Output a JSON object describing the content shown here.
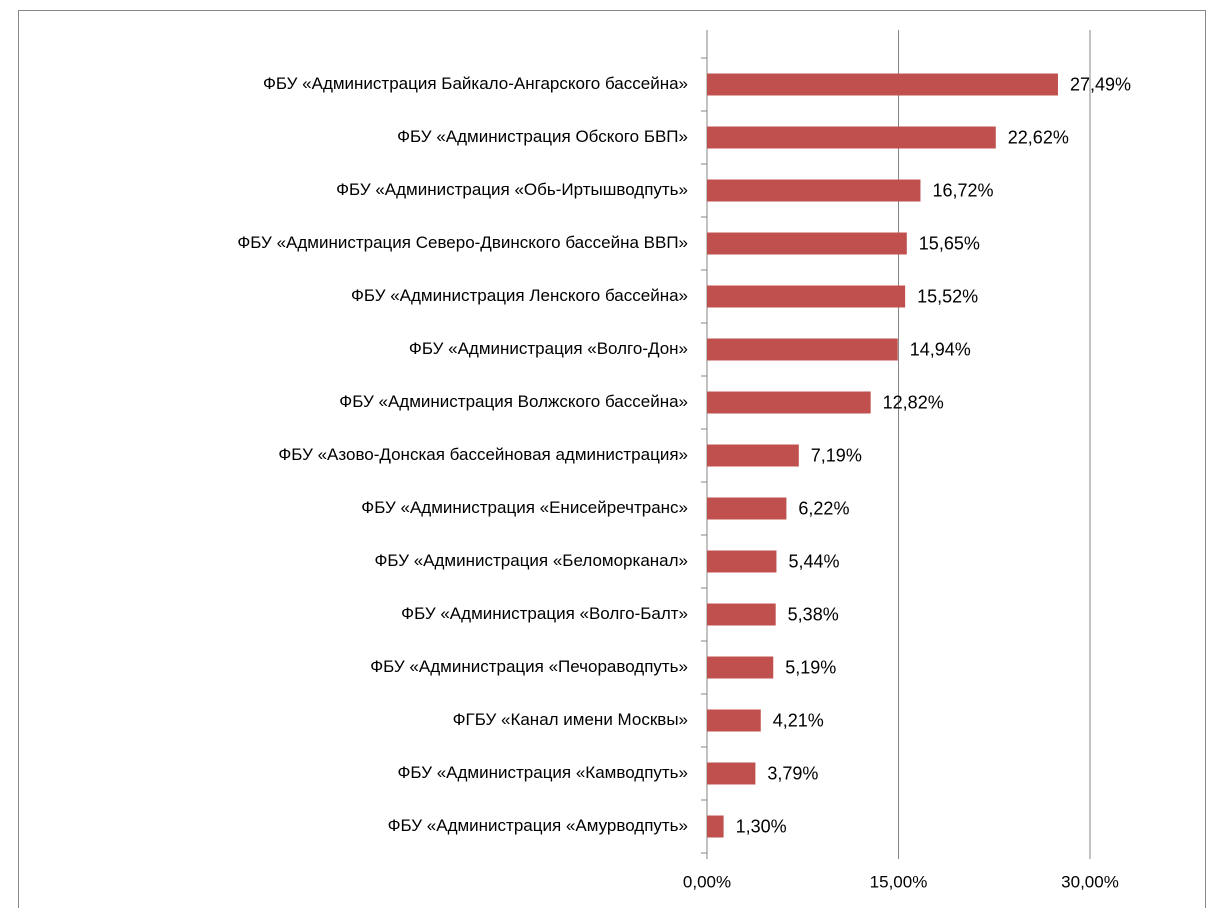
{
  "chart_data": {
    "type": "hbar",
    "categories": [
      "ФБУ «Администрация Байкало-Ангарского бассейна»",
      "ФБУ «Администрация Обского БВП»",
      "ФБУ «Администрация «Обь-Иртышводпуть»",
      "ФБУ «Администрация Северо-Двинского бассейна ВВП»",
      "ФБУ «Администрация Ленского бассейна»",
      "ФБУ «Администрация «Волго-Дон»",
      "ФБУ «Администрация Волжского бассейна»",
      "ФБУ «Азово-Донская бассейновая администрация»",
      "ФБУ «Администрация «Енисейречтранс»",
      "ФБУ «Администрация «Беломорканал»",
      "ФБУ «Администрация «Волго-Балт»",
      "ФБУ «Администрация «Печораводпуть»",
      "ФГБУ «Канал имени Москвы»",
      "ФБУ «Администрация «Камводпуть»",
      "ФБУ «Администрация «Амурводпуть»"
    ],
    "values": [
      27.49,
      22.62,
      16.72,
      15.65,
      15.52,
      14.94,
      12.82,
      7.19,
      6.22,
      5.44,
      5.38,
      5.19,
      4.21,
      3.79,
      1.3
    ],
    "value_labels": [
      "27,49%",
      "22,62%",
      "16,72%",
      "15,65%",
      "15,52%",
      "14,94%",
      "12,82%",
      "7,19%",
      "6,22%",
      "5,44%",
      "5,38%",
      "5,19%",
      "4,21%",
      "3,79%",
      "1,30%"
    ],
    "color": "#c0504d",
    "xlim": [
      0,
      30
    ],
    "xticks": [
      {
        "value": 0,
        "label": "0,00%"
      },
      {
        "value": 15,
        "label": "15,00%"
      },
      {
        "value": 30,
        "label": "30,00%"
      }
    ],
    "grid": true
  }
}
